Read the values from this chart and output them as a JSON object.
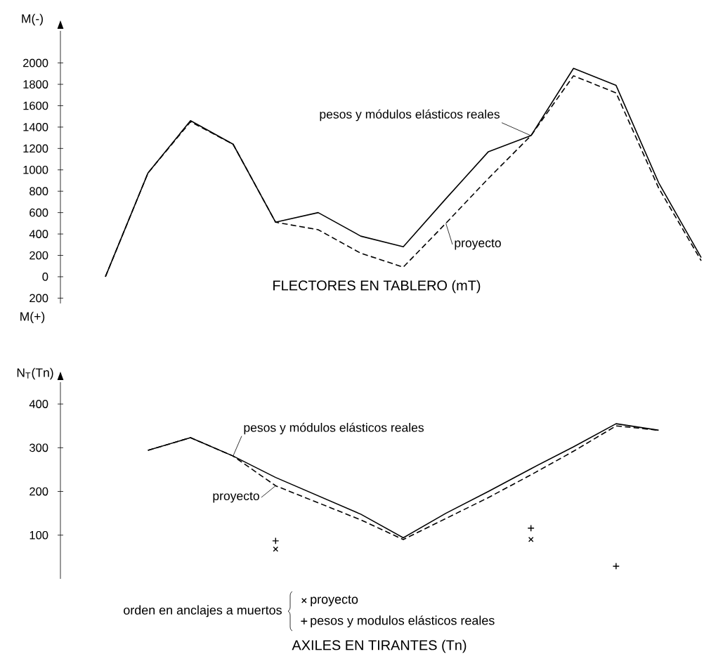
{
  "chart_data": [
    {
      "type": "line",
      "title": "FLECTORES EN TABLERO (mT)",
      "ylabel": "M(-)",
      "annotations": [
        "M(+)"
      ],
      "categories": [
        null,
        null,
        null,
        null,
        null,
        null,
        null,
        null,
        null,
        null,
        null,
        null,
        null,
        null,
        null
      ],
      "series": [
        {
          "name": "pesos y módulos elásticos reales",
          "color": "#000000",
          "line_style": "solid",
          "values": [
            0,
            970,
            1460,
            1240,
            510,
            600,
            380,
            280,
            730,
            1170,
            1320,
            1950,
            1790,
            880,
            180
          ]
        },
        {
          "name": "proyecto",
          "color": "#000000",
          "line_style": "dashed",
          "values": [
            0,
            970,
            1450,
            1240,
            510,
            440,
            220,
            90,
            500,
            920,
            1320,
            1880,
            1720,
            830,
            150
          ]
        }
      ],
      "ylim": [
        -250,
        2300
      ],
      "yticks": [
        {
          "value": -200,
          "label": "200"
        },
        0,
        200,
        400,
        600,
        800,
        1000,
        1200,
        1400,
        1600,
        1800,
        2000
      ],
      "legend": false
    },
    {
      "type": "line",
      "title": "AXILES EN TIRANTES (Tn)",
      "ylabel": "N$_{T}$(Tn)",
      "legend_title": "orden en anclajes a muertos",
      "categories": [
        null,
        null,
        null,
        null,
        null,
        null,
        null,
        null,
        null,
        null,
        null,
        null,
        null,
        null,
        null
      ],
      "series": [
        {
          "name": "pesos y módulos elásticos reales",
          "color": "#000000",
          "line_style": "solid",
          "values": [
            null,
            294,
            323,
            281,
            232,
            190,
            148,
            94,
            150,
            200,
            252,
            302,
            355,
            340,
            null
          ]
        },
        {
          "name": "proyecto",
          "color": "#000000",
          "line_style": "dashed",
          "values": [
            null,
            294,
            323,
            281,
            213,
            174,
            135,
            90,
            138,
            186,
            238,
            292,
            350,
            340,
            null
          ]
        },
        {
          "name": "proyecto",
          "type": "scatter",
          "marker": "cross",
          "color": "#000000",
          "values": [
            null,
            null,
            null,
            null,
            68,
            null,
            null,
            null,
            null,
            null,
            90,
            null,
            null,
            null,
            null
          ]
        },
        {
          "name": "pesos y modulos elásticos reales",
          "type": "scatter",
          "marker": "plus",
          "color": "#000000",
          "values": [
            null,
            null,
            null,
            null,
            87,
            null,
            null,
            null,
            null,
            null,
            116,
            null,
            29,
            null,
            null
          ]
        }
      ],
      "ylim": [
        0,
        450
      ],
      "yticks": [
        100,
        200,
        300,
        400
      ],
      "legend": "bottom"
    }
  ]
}
